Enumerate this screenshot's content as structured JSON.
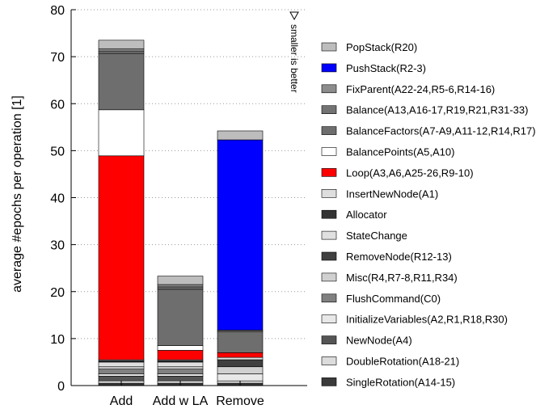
{
  "chart_data": {
    "type": "bar",
    "stacked": true,
    "categories": [
      "Add",
      "Add w LA",
      "Remove"
    ],
    "ylabel": "average #epochs per operation [1]",
    "xlabel": "",
    "ylim": [
      0,
      80
    ],
    "yticks": [
      0,
      10,
      20,
      30,
      40,
      50,
      60,
      70,
      80
    ],
    "grid": "horizontal dotted",
    "legend_position": "right",
    "note": "smaller is better",
    "series": [
      {
        "name": "SingleRotation(A14-15)",
        "color": "#3a3a3a",
        "values": [
          0.5,
          0.5,
          0.5
        ]
      },
      {
        "name": "DoubleRotation(A18-21)",
        "color": "#dcdcdc",
        "values": [
          0.5,
          0.5,
          0.5
        ]
      },
      {
        "name": "NewNode(A4)",
        "color": "#555555",
        "values": [
          1.0,
          1.0,
          0.0
        ]
      },
      {
        "name": "InitializeVariables(A2,R1,R18,R30)",
        "color": "#e8e8e8",
        "values": [
          0.5,
          0.5,
          1.5
        ]
      },
      {
        "name": "FlushCommand(C0)",
        "color": "#808080",
        "values": [
          1.0,
          1.0,
          0.0
        ]
      },
      {
        "name": "Misc(R4,R7-8,R11,R34)",
        "color": "#d0d0d0",
        "values": [
          0.5,
          0.5,
          1.5
        ]
      },
      {
        "name": "RemoveNode(R12-13)",
        "color": "#404040",
        "values": [
          0.0,
          0.0,
          1.5
        ]
      },
      {
        "name": "StateChange",
        "color": "#e0e0e0",
        "values": [
          1.0,
          1.0,
          0.5
        ]
      },
      {
        "name": "Allocator",
        "color": "#333333",
        "values": [
          0.3,
          0.3,
          0.0
        ]
      },
      {
        "name": "InsertNewNode(A1)",
        "color": "#dedede",
        "values": [
          0.2,
          0.2,
          0.0
        ]
      },
      {
        "name": "Loop(A3,A6,A25-26,R9-10)",
        "color": "#ff0000",
        "values": [
          43.4,
          2.0,
          1.0
        ]
      },
      {
        "name": "BalancePoints(A5,A10)",
        "color": "#ffffff",
        "values": [
          9.8,
          1.0,
          0.0
        ]
      },
      {
        "name": "BalanceFactors(A7-A9,A11-12,R14,R17)",
        "color": "#6e6e6e",
        "values": [
          12.0,
          12.0,
          4.5
        ]
      },
      {
        "name": "Balance(A13,A16-17,R19,R21,R31-33)",
        "color": "#737373",
        "values": [
          0.5,
          0.5,
          0.3
        ]
      },
      {
        "name": "FixParent(A22-24,R5-6,R14-16)",
        "color": "#8c8c8c",
        "values": [
          0.5,
          0.5,
          0.0
        ]
      },
      {
        "name": "PushStack(R2-3)",
        "color": "#0000ff",
        "values": [
          0.0,
          0.0,
          40.5
        ]
      },
      {
        "name": "PopStack(R20)",
        "color": "#bdbdbd",
        "values": [
          1.8,
          1.8,
          1.9
        ]
      }
    ]
  }
}
